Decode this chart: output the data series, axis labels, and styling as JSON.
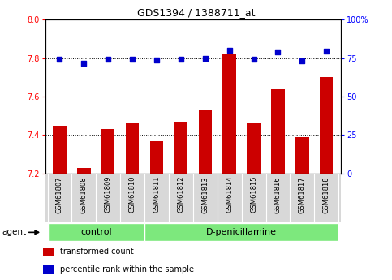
{
  "title": "GDS1394 / 1388711_at",
  "samples": [
    "GSM61807",
    "GSM61808",
    "GSM61809",
    "GSM61810",
    "GSM61811",
    "GSM61812",
    "GSM61813",
    "GSM61814",
    "GSM61815",
    "GSM61816",
    "GSM61817",
    "GSM61818"
  ],
  "bar_values": [
    7.45,
    7.23,
    7.43,
    7.46,
    7.37,
    7.47,
    7.53,
    7.82,
    7.46,
    7.64,
    7.39,
    7.7
  ],
  "dot_values": [
    74.5,
    71.5,
    74.0,
    74.5,
    73.5,
    74.5,
    74.8,
    80.0,
    74.5,
    79.0,
    73.0,
    79.5
  ],
  "bar_color": "#cc0000",
  "dot_color": "#0000cc",
  "ylim_left": [
    7.2,
    8.0
  ],
  "ylim_right": [
    0,
    100
  ],
  "yticks_left": [
    7.2,
    7.4,
    7.6,
    7.8,
    8.0
  ],
  "yticks_right": [
    0,
    25,
    50,
    75,
    100
  ],
  "ytick_labels_right": [
    "0",
    "25",
    "50",
    "75",
    "100%"
  ],
  "hlines": [
    7.4,
    7.6,
    7.8
  ],
  "groups": [
    {
      "label": "control",
      "start": 0,
      "end": 4
    },
    {
      "label": "D-penicillamine",
      "start": 4,
      "end": 12
    }
  ],
  "group_color": "#7de87d",
  "sample_bg_color": "#d8d8d8",
  "agent_label": "agent",
  "legend_items": [
    {
      "color": "#cc0000",
      "label": "transformed count"
    },
    {
      "color": "#0000cc",
      "label": "percentile rank within the sample"
    }
  ],
  "bar_width": 0.55,
  "background_color": "#ffffff"
}
